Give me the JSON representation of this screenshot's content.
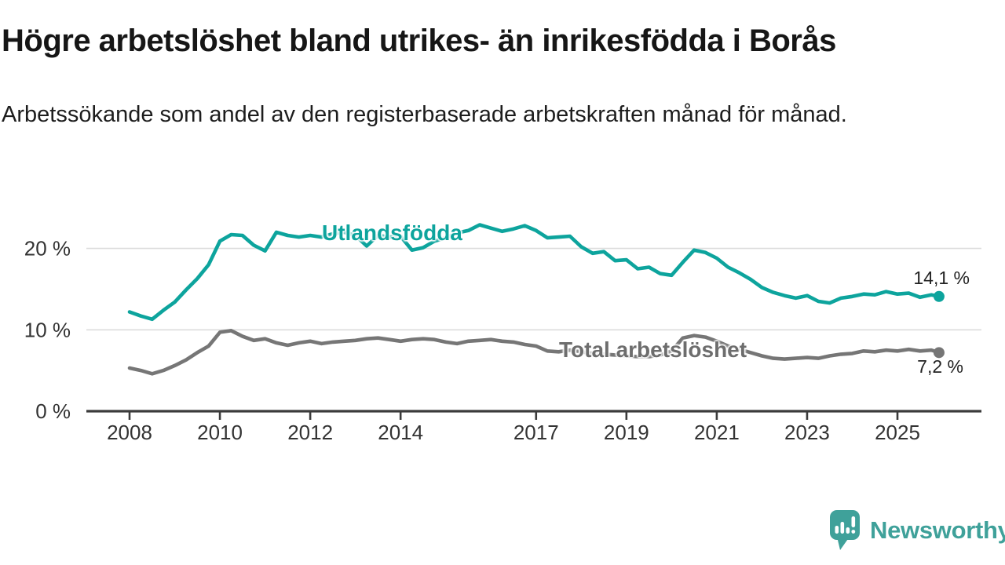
{
  "header": {
    "title": "Högre arbetslöshet bland utrikes- än inrikesfödda i Borås",
    "subtitle": "Arbetssökande som andel av den registerbaserade arbetskraften månad för månad."
  },
  "chart_data": {
    "type": "line",
    "x_unit": "decimal_year",
    "grid": "horizontal",
    "xlim": [
      2007.04,
      2026.86
    ],
    "ylim": [
      0,
      24.5
    ],
    "colors": {
      "axis": "#3b3b3b",
      "gridline": "#dcdcdc",
      "tick_text": "#333333"
    },
    "x": [
      2008,
      2008.25,
      2008.5,
      2008.75,
      2009,
      2009.25,
      2009.5,
      2009.75,
      2010,
      2010.25,
      2010.5,
      2010.75,
      2011,
      2011.25,
      2011.5,
      2011.75,
      2012,
      2012.25,
      2012.5,
      2012.75,
      2013,
      2013.25,
      2013.5,
      2013.75,
      2014,
      2014.25,
      2014.5,
      2014.75,
      2015,
      2015.25,
      2015.5,
      2015.75,
      2016,
      2016.25,
      2016.5,
      2016.75,
      2017,
      2017.25,
      2017.5,
      2017.75,
      2018,
      2018.25,
      2018.5,
      2018.75,
      2019,
      2019.25,
      2019.5,
      2019.75,
      2020,
      2020.25,
      2020.5,
      2020.75,
      2021,
      2021.25,
      2021.5,
      2021.75,
      2022,
      2022.25,
      2022.5,
      2022.75,
      2023,
      2023.25,
      2023.5,
      2023.75,
      2024,
      2024.25,
      2024.5,
      2024.75,
      2025,
      2025.25,
      2025.5,
      2025.75,
      2025.92
    ],
    "series": [
      {
        "name": "utlandsfodda",
        "label": "Utlandsfödda",
        "color": "#0da49d",
        "end_label": "14,1 %",
        "end_value": 14.1,
        "values": [
          12.2,
          11.7,
          11.3,
          12.4,
          13.4,
          14.9,
          16.3,
          18.0,
          20.9,
          21.7,
          21.6,
          20.4,
          19.7,
          22.0,
          21.6,
          21.4,
          21.6,
          21.4,
          21.8,
          22.0,
          21.6,
          20.3,
          21.6,
          21.4,
          21.5,
          19.8,
          20.1,
          20.9,
          21.3,
          21.9,
          22.2,
          22.9,
          22.5,
          22.1,
          22.4,
          22.8,
          22.2,
          21.3,
          21.4,
          21.5,
          20.2,
          19.4,
          19.6,
          18.5,
          18.6,
          17.5,
          17.7,
          16.9,
          16.7,
          18.3,
          19.8,
          19.5,
          18.8,
          17.7,
          17.0,
          16.2,
          15.2,
          14.6,
          14.2,
          13.9,
          14.2,
          13.5,
          13.3,
          13.9,
          14.1,
          14.4,
          14.3,
          14.7,
          14.4,
          14.5,
          14.0,
          14.3,
          14.1
        ]
      },
      {
        "name": "total",
        "label": "Total arbetslöshet",
        "color": "#767676",
        "end_label": "7,2 %",
        "end_value": 7.2,
        "values": [
          5.3,
          5.0,
          4.6,
          5.0,
          5.6,
          6.3,
          7.2,
          8.0,
          9.7,
          9.9,
          9.2,
          8.7,
          8.9,
          8.4,
          8.1,
          8.4,
          8.6,
          8.3,
          8.5,
          8.6,
          8.7,
          8.9,
          9.0,
          8.8,
          8.6,
          8.8,
          8.9,
          8.8,
          8.5,
          8.3,
          8.6,
          8.7,
          8.8,
          8.6,
          8.5,
          8.2,
          8.0,
          7.4,
          7.3,
          7.5,
          7.3,
          7.1,
          7.0,
          6.9,
          6.8,
          6.7,
          6.7,
          6.9,
          7.4,
          9.0,
          9.3,
          9.1,
          8.6,
          8.0,
          7.6,
          7.2,
          6.8,
          6.5,
          6.4,
          6.5,
          6.6,
          6.5,
          6.8,
          7.0,
          7.1,
          7.4,
          7.3,
          7.5,
          7.4,
          7.6,
          7.4,
          7.5,
          7.2
        ]
      }
    ],
    "y_ticks": [
      {
        "value": 0,
        "label": "0 %"
      },
      {
        "value": 10,
        "label": "10 %"
      },
      {
        "value": 20,
        "label": "20 %"
      }
    ],
    "x_ticks": [
      {
        "value": 2008,
        "label": "2008"
      },
      {
        "value": 2010,
        "label": "2010"
      },
      {
        "value": 2012,
        "label": "2012"
      },
      {
        "value": 2014,
        "label": "2014"
      },
      {
        "value": 2017,
        "label": "2017"
      },
      {
        "value": 2019,
        "label": "2019"
      },
      {
        "value": 2021,
        "label": "2021"
      },
      {
        "value": 2023,
        "label": "2023"
      },
      {
        "value": 2025,
        "label": "2025"
      }
    ]
  },
  "footer": {
    "brand": "Newsworthy",
    "brand_color": "#3fa19a"
  }
}
